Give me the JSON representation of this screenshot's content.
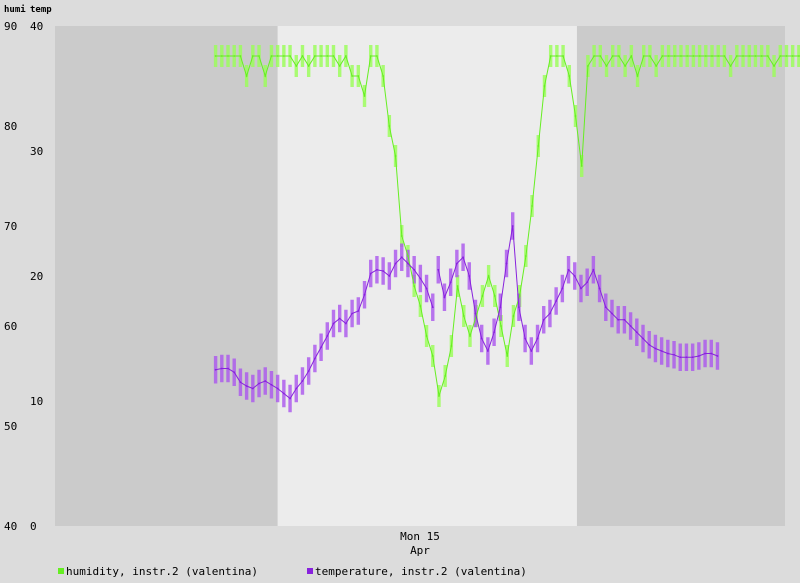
{
  "header": {
    "left_label": "humi",
    "right_label": "temp"
  },
  "legend": [
    {
      "label": "humidity, instr.2 (valentina)",
      "color": "#66ee22"
    },
    {
      "label": "temperature, instr.2 (valentina)",
      "color": "#8822dd"
    }
  ],
  "colors": {
    "background": "#dcdcdc",
    "night": "#cbcbcb",
    "day": "#ececec",
    "humidity_line": "#66ee22",
    "humidity_band": "#99ff55",
    "temperature_line": "#8822dd",
    "temperature_band": "#aa55ee"
  },
  "chart_data": {
    "type": "line",
    "title": "",
    "x_tick_labels": [
      "Mon 15",
      "Apr"
    ],
    "x_range_samples": [
      0,
      100
    ],
    "y_left": {
      "label": "humi",
      "ticks": [
        40,
        50,
        60,
        70,
        80,
        90
      ],
      "range": [
        40,
        90
      ]
    },
    "y_right": {
      "label": "temp",
      "ticks": [
        0,
        10,
        20,
        30,
        40
      ],
      "range": [
        0,
        40
      ]
    },
    "grid": false,
    "legend_position": "bottom",
    "shaded_periods": [
      {
        "kind": "night",
        "from": 0,
        "to": 30.5
      },
      {
        "kind": "day",
        "from": 30.5,
        "to": 71.5
      },
      {
        "kind": "night",
        "from": 71.5,
        "to": 100
      }
    ],
    "x_tick_at": 50,
    "series": [
      {
        "name": "humidity, instr.2 (valentina)",
        "axis": "left",
        "segments": [
          {
            "start": 22,
            "values": [
              87,
              87,
              87,
              87,
              87,
              85,
              87,
              87,
              85,
              87,
              87,
              87,
              87,
              86,
              87,
              86,
              87,
              87,
              87,
              87,
              86,
              87,
              85,
              85,
              83,
              87,
              87,
              85,
              80,
              77,
              69,
              67,
              64,
              62,
              59,
              57,
              53,
              55,
              58,
              64,
              61,
              59,
              61,
              63,
              65,
              63,
              60,
              57,
              61,
              63,
              67,
              72,
              78,
              84,
              87,
              87,
              87,
              85,
              81,
              76,
              86,
              87,
              87,
              86,
              87,
              87,
              86,
              87,
              85,
              87,
              87,
              86,
              87,
              87,
              87,
              87,
              87,
              87,
              87,
              87,
              87,
              87,
              87,
              86,
              87,
              87,
              87,
              87,
              87,
              87,
              86,
              87,
              87,
              87,
              87,
              87,
              86,
              87,
              87,
              87,
              87,
              87
            ],
            "step": 0.85
          }
        ]
      },
      {
        "name": "temperature, instr.2 (valentina)",
        "axis": "right",
        "segments": [
          {
            "start": 22,
            "values": [
              12.5,
              12.6,
              12.6,
              12.3,
              11.5,
              11.2,
              11.0,
              11.4,
              11.6,
              11.3,
              11.0,
              10.6,
              10.2,
              11.0,
              11.6,
              12.4,
              13.4,
              14.3,
              15.2,
              16.2,
              16.6,
              16.2,
              17.0,
              17.2,
              18.5,
              20.2,
              20.5,
              20.4,
              20.0,
              21.0,
              21.5,
              21.0,
              20.5,
              19.8,
              19.0,
              17.5
            ],
            "step": 0.85
          },
          {
            "start": 52.5,
            "values": [
              20.5,
              18.3,
              19.5,
              21.0,
              21.5,
              20.0,
              17.0,
              15.0,
              14.0,
              15.5,
              17.5,
              21.0,
              24.0,
              17.5,
              15.0,
              14.0,
              15.0,
              16.5,
              17.0,
              18.0,
              19.0,
              20.5,
              20.0,
              19.0,
              19.5,
              20.5,
              19.0,
              17.5,
              17.0,
              16.5,
              16.5,
              16.0,
              15.5,
              15.0,
              14.5,
              14.2,
              14.0,
              13.8,
              13.7,
              13.5,
              13.5,
              13.5,
              13.6,
              13.8,
              13.8,
              13.6
            ],
            "step": 0.85
          }
        ]
      }
    ]
  }
}
